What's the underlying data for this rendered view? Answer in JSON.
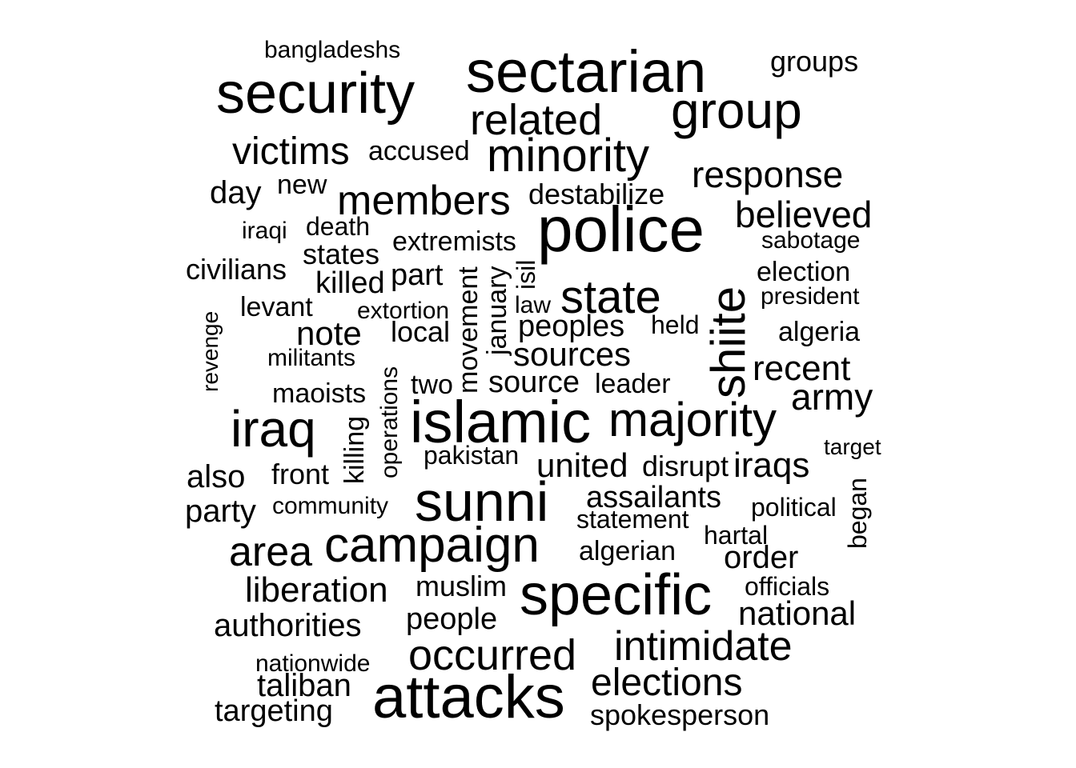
{
  "word_cloud": {
    "text_color": "#000000",
    "background_color": "#ffffff",
    "words": [
      "bangladeshs",
      "sectarian",
      "groups",
      "security",
      "group",
      "related",
      "victims",
      "accused",
      "minority",
      "response",
      "day",
      "new",
      "members",
      "destabilize",
      "police",
      "believed",
      "iraqi",
      "death",
      "sabotage",
      "extremists",
      "states",
      "civilians",
      "election",
      "killed",
      "part",
      "movement",
      "january",
      "isil",
      "state",
      "shiite",
      "president",
      "levant",
      "extortion",
      "law",
      "held",
      "revenge",
      "note",
      "local",
      "peoples",
      "algeria",
      "militants",
      "sources",
      "recent",
      "operations",
      "two",
      "source",
      "leader",
      "maoists",
      "army",
      "iraq",
      "killing",
      "islamic",
      "majority",
      "target",
      "pakistan",
      "also",
      "front",
      "united",
      "disrupt",
      "iraqs",
      "began",
      "party",
      "community",
      "sunni",
      "assailants",
      "political",
      "statement",
      "hartal",
      "area",
      "campaign",
      "algerian",
      "order",
      "liberation",
      "muslim",
      "specific",
      "officials",
      "authorities",
      "people",
      "national",
      "intimidate",
      "nationwide",
      "occurred",
      "taliban",
      "attacks",
      "elections",
      "targeting",
      "spokesperson"
    ]
  }
}
